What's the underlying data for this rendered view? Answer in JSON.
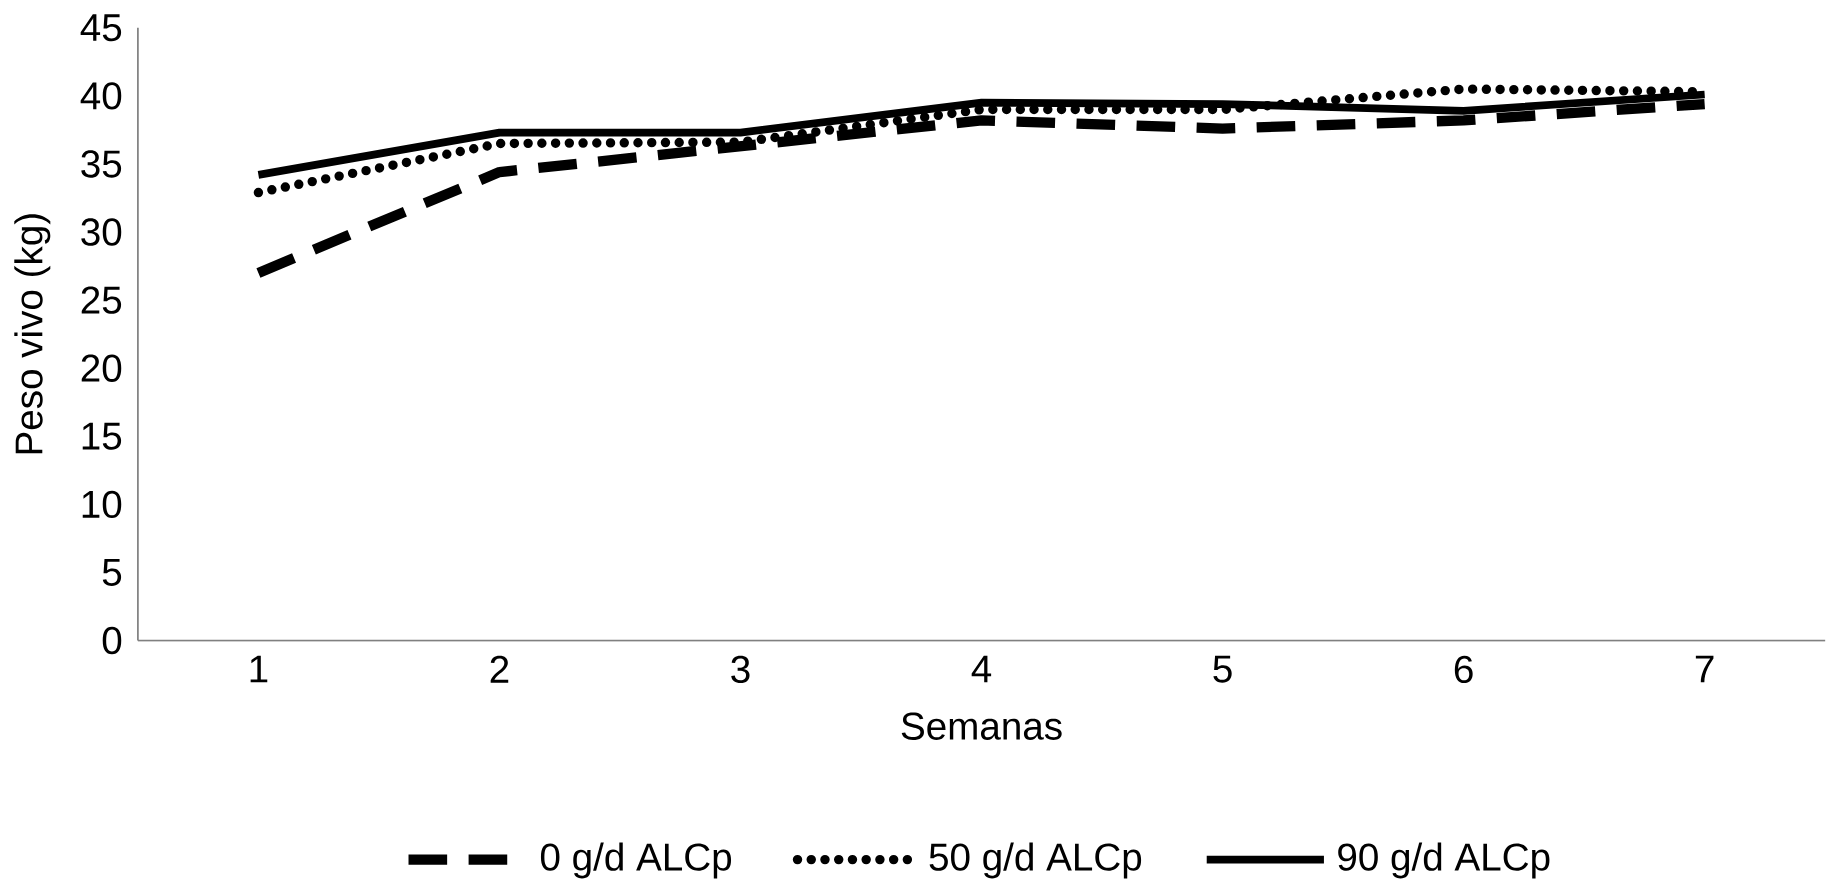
{
  "chart_data": {
    "type": "line",
    "xlabel": "Semanas",
    "ylabel": "Peso vivo  (kg)",
    "categories": [
      "1",
      "2",
      "3",
      "4",
      "5",
      "6",
      "7"
    ],
    "series": [
      {
        "name": "0 g/d ALCp",
        "color": "#000000",
        "line_style": "dashed",
        "values": [
          27,
          34.4,
          36.3,
          38.2,
          37.6,
          38.2,
          39.4
        ]
      },
      {
        "name": "50 g/d ALCp",
        "color": "#000000",
        "line_style": "dotted",
        "values": [
          32.9,
          36.5,
          36.6,
          39,
          39,
          40.5,
          40.3
        ]
      },
      {
        "name": "90 g/d ALCp",
        "color": "#000000",
        "line_style": "solid",
        "values": [
          34.2,
          37.3,
          37.3,
          39.5,
          39.4,
          38.9,
          40.1
        ]
      }
    ],
    "ylim": [
      0,
      45
    ],
    "yticks": [
      0,
      5,
      10,
      15,
      20,
      25,
      30,
      35,
      40,
      45
    ],
    "grid": false,
    "legend": "bottom",
    "marker": "none"
  }
}
